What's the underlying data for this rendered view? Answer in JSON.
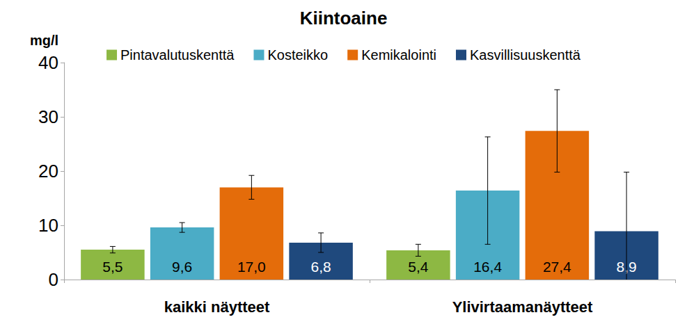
{
  "chart_data": {
    "type": "bar",
    "title": "Kiintoaine",
    "y_label": "mg/l",
    "categories": [
      "kaikki näytteet",
      "Ylivirtaamanäytteet"
    ],
    "series": [
      {
        "name": "Pintavalutuskenttä",
        "color": "#8db843",
        "values": [
          5.5,
          5.4
        ],
        "value_labels": [
          "5,5",
          "5,4"
        ],
        "errors": [
          0.6,
          1.1
        ]
      },
      {
        "name": "Kosteikko",
        "color": "#4bacc6",
        "values": [
          9.6,
          16.4
        ],
        "value_labels": [
          "9,6",
          "16,4"
        ],
        "errors": [
          0.9,
          9.9
        ]
      },
      {
        "name": "Kemikalointi",
        "color": "#e46c0a",
        "values": [
          17.0,
          27.4
        ],
        "value_labels": [
          "17,0",
          "27,4"
        ],
        "errors": [
          2.2,
          7.6
        ]
      },
      {
        "name": "Kasvillisuuskenttä",
        "color": "#1f497d",
        "values": [
          6.8,
          8.9
        ],
        "value_labels": [
          "6,8",
          "8,9"
        ],
        "errors": [
          1.8,
          10.9
        ]
      }
    ],
    "ylim": [
      0,
      40
    ],
    "yticks": [
      0,
      10,
      20,
      30,
      40
    ],
    "grid": false,
    "legend": "top",
    "data_labels": true
  }
}
